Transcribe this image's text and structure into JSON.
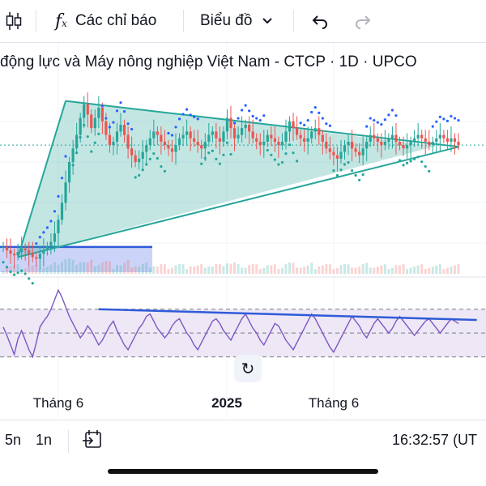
{
  "toolbar": {
    "indicators_label": "Các chỉ báo",
    "chart_type_label": "Biểu đồ",
    "icons": [
      "candles-icon",
      "function-icon",
      "chevron-down-icon",
      "undo-icon",
      "redo-icon"
    ]
  },
  "title": "động lực và Máy nông nghiệp Việt Nam - CTCP · 1D · UPCO",
  "bottom_bar": {
    "range_5y": "5n",
    "range_1y": "1n",
    "clock": "16:32:57 (UT"
  },
  "colors": {
    "candle_up": "#26a69a",
    "candle_down": "#ef5350",
    "triangle_fill": "#26a69a",
    "zone_fill": "#c5cff7",
    "blue_line": "#2f5bd8",
    "rsi_line": "#7e57c2",
    "rsi_band": "#ede7f6",
    "indicator_teal": "#26a69a",
    "indicator_blue": "#2962ff"
  },
  "chart_data": {
    "type": "candlestick",
    "x_tick_labels": [
      "Tháng 6",
      "2025",
      "Tháng 6"
    ],
    "price": {
      "close": [
        42,
        40,
        38,
        37,
        39,
        41,
        40,
        38,
        36,
        35,
        38,
        40,
        42,
        45,
        50,
        58,
        68,
        80,
        92,
        100,
        108,
        118,
        126,
        120,
        112,
        118,
        124,
        116,
        108,
        102,
        104,
        110,
        114,
        108,
        100,
        96,
        92,
        94,
        98,
        102,
        106,
        110,
        108,
        104,
        102,
        100,
        98,
        102,
        106,
        108,
        110,
        106,
        104,
        102,
        100,
        104,
        108,
        110,
        106,
        104,
        110,
        118,
        112,
        106,
        108,
        112,
        114,
        110,
        106,
        104,
        102,
        104,
        108,
        106,
        104,
        102,
        104,
        110,
        116,
        112,
        108,
        106,
        104,
        106,
        110,
        112,
        108,
        104,
        100,
        98,
        96,
        94,
        98,
        102,
        104,
        100,
        98,
        96,
        100,
        104,
        108,
        106,
        104,
        102,
        104,
        106,
        108,
        104,
        102,
        100,
        102,
        104,
        106,
        108,
        106,
        104,
        102,
        104,
        106,
        108,
        106,
        104,
        106,
        104,
        102
      ]
    },
    "triangle_pattern": {
      "upper_line": [
        [
          17,
          128
        ],
        [
          118,
          101.5
        ]
      ],
      "lower_line": [
        [
          4,
          36
        ],
        [
          118,
          101.5
        ]
      ]
    },
    "rsi": {
      "levels": [
        70,
        50,
        30
      ],
      "values": [
        55,
        48,
        40,
        32,
        45,
        52,
        44,
        36,
        30,
        42,
        55,
        60,
        64,
        70,
        78,
        86,
        80,
        72,
        64,
        58,
        52,
        46,
        50,
        56,
        52,
        46,
        40,
        44,
        50,
        56,
        60,
        52,
        46,
        40,
        36,
        42,
        48,
        54,
        58,
        64,
        66,
        60,
        54,
        50,
        46,
        50,
        56,
        60,
        62,
        56,
        50,
        46,
        40,
        36,
        42,
        48,
        54,
        60,
        62,
        58,
        52,
        48,
        44,
        50,
        56,
        62,
        66,
        60,
        54,
        50,
        44,
        40,
        46,
        52,
        58,
        56,
        50,
        44,
        40,
        36,
        42,
        48,
        54,
        60,
        66,
        62,
        56,
        50,
        44,
        38,
        34,
        40,
        46,
        52,
        58,
        64,
        60,
        56,
        50,
        46,
        52,
        58,
        62,
        58,
        54,
        50,
        54,
        60,
        64,
        60,
        56,
        52,
        48,
        52,
        56,
        60,
        62,
        58,
        54,
        50,
        54,
        58,
        62,
        60,
        58
      ],
      "trendline": [
        [
          26,
          70
        ],
        [
          129,
          61
        ]
      ]
    }
  }
}
